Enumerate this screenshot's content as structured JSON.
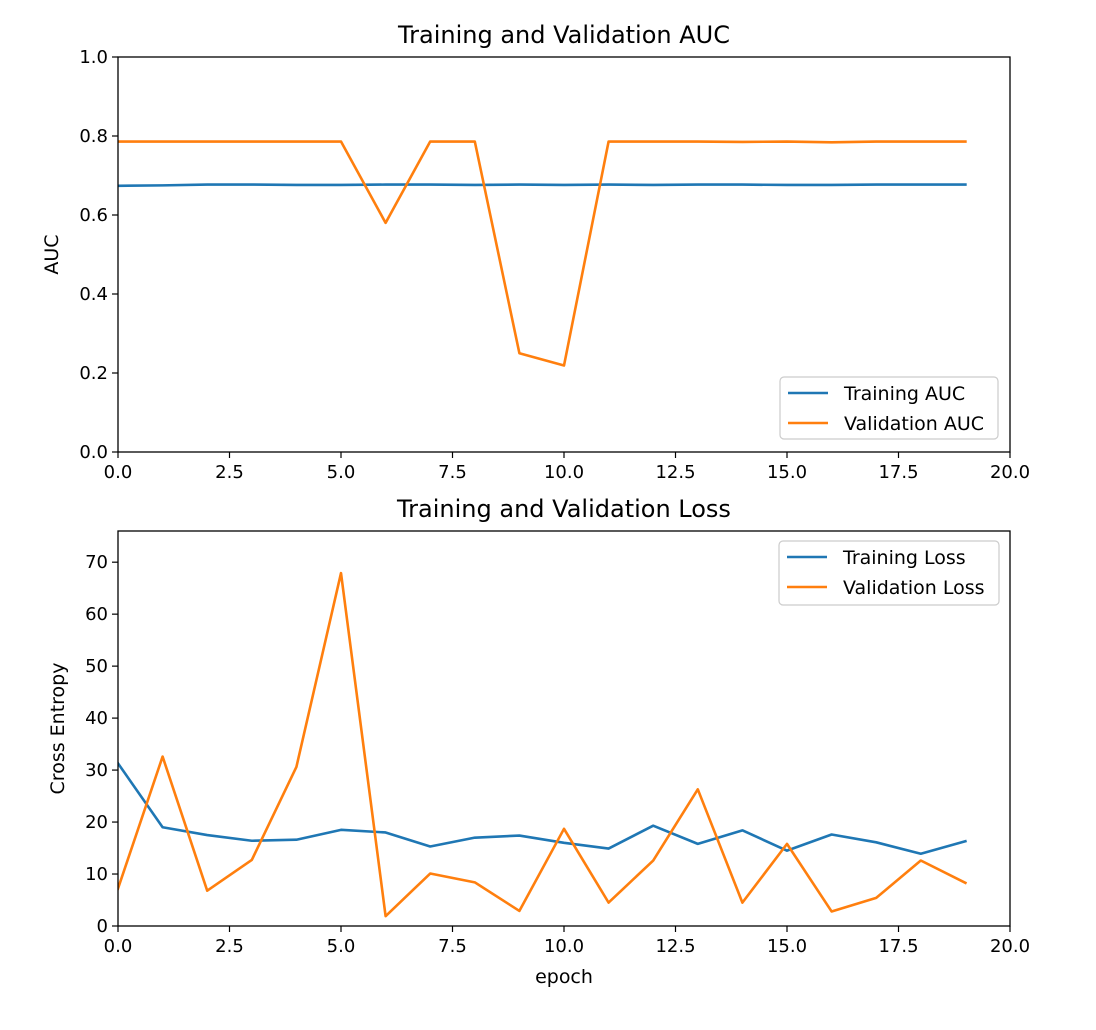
{
  "chart_data": [
    {
      "type": "line",
      "title": "Training and Validation AUC",
      "xlabel": "",
      "ylabel": "AUC",
      "xlim": [
        0,
        20
      ],
      "ylim": [
        0,
        1
      ],
      "xticks": [
        0,
        2.5,
        5,
        7.5,
        10,
        12.5,
        15,
        17.5,
        20
      ],
      "xtick_labels": [
        "0.0",
        "2.5",
        "5.0",
        "7.5",
        "10.0",
        "12.5",
        "15.0",
        "17.5",
        "20.0"
      ],
      "yticks": [
        0,
        0.2,
        0.4,
        0.6,
        0.8,
        1.0
      ],
      "ytick_labels": [
        "0.0",
        "0.2",
        "0.4",
        "0.6",
        "0.8",
        "1.0"
      ],
      "grid": false,
      "legend_position": "lower-right",
      "x": [
        0,
        1,
        2,
        3,
        4,
        5,
        6,
        7,
        8,
        9,
        10,
        11,
        12,
        13,
        14,
        15,
        16,
        17,
        18,
        19
      ],
      "series": [
        {
          "name": "Training AUC",
          "color": "#1f77b4",
          "values": [
            0.674,
            0.675,
            0.677,
            0.677,
            0.676,
            0.676,
            0.677,
            0.677,
            0.676,
            0.677,
            0.676,
            0.677,
            0.676,
            0.677,
            0.677,
            0.676,
            0.676,
            0.677,
            0.677,
            0.677
          ]
        },
        {
          "name": "Validation AUC",
          "color": "#ff7f0e",
          "values": [
            0.786,
            0.786,
            0.786,
            0.786,
            0.786,
            0.786,
            0.58,
            0.786,
            0.786,
            0.25,
            0.219,
            0.786,
            0.786,
            0.786,
            0.785,
            0.786,
            0.784,
            0.786,
            0.786,
            0.786
          ]
        }
      ]
    },
    {
      "type": "line",
      "title": "Training and Validation Loss",
      "xlabel": "epoch",
      "ylabel": "Cross Entropy",
      "xlim": [
        0,
        20
      ],
      "ylim": [
        0,
        76
      ],
      "xticks": [
        0,
        2.5,
        5,
        7.5,
        10,
        12.5,
        15,
        17.5,
        20
      ],
      "xtick_labels": [
        "0.0",
        "2.5",
        "5.0",
        "7.5",
        "10.0",
        "12.5",
        "15.0",
        "17.5",
        "20.0"
      ],
      "yticks": [
        0,
        10,
        20,
        30,
        40,
        50,
        60,
        70
      ],
      "ytick_labels": [
        "0",
        "10",
        "20",
        "30",
        "40",
        "50",
        "60",
        "70"
      ],
      "grid": false,
      "legend_position": "upper-right",
      "x": [
        0,
        1,
        2,
        3,
        4,
        5,
        6,
        7,
        8,
        9,
        10,
        11,
        12,
        13,
        14,
        15,
        16,
        17,
        18,
        19
      ],
      "series": [
        {
          "name": "Training Loss",
          "color": "#1f77b4",
          "values": [
            31.3,
            19.0,
            17.5,
            16.4,
            16.6,
            18.5,
            18.0,
            15.3,
            17.0,
            17.4,
            16.0,
            14.9,
            19.3,
            15.8,
            18.4,
            14.5,
            17.6,
            16.1,
            13.9,
            16.3
          ]
        },
        {
          "name": "Validation Loss",
          "color": "#ff7f0e",
          "values": [
            7.2,
            32.6,
            6.8,
            12.7,
            30.6,
            67.9,
            1.9,
            10.1,
            8.4,
            2.9,
            18.7,
            4.5,
            12.6,
            26.3,
            4.5,
            15.8,
            2.8,
            5.4,
            12.6,
            8.3
          ]
        }
      ]
    }
  ]
}
